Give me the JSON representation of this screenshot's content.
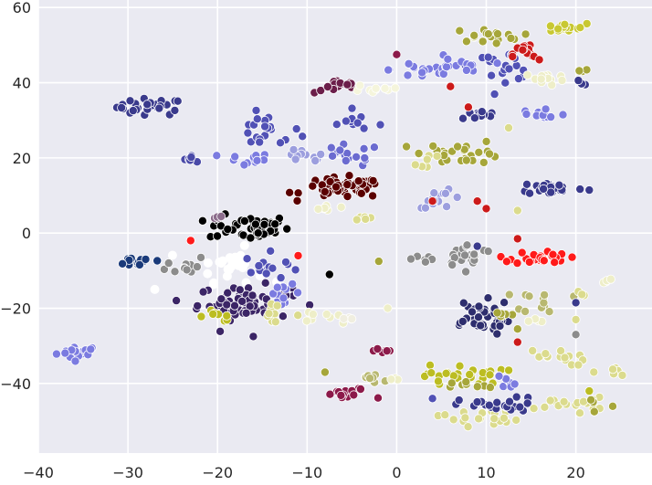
{
  "chart_data": {
    "type": "scatter",
    "title": "",
    "xlabel": "",
    "ylabel": "",
    "xlim": [
      -40,
      28.5
    ],
    "ylim": [
      -58.5,
      62
    ],
    "grid": true,
    "legend": "none",
    "background": "#eaeaf2",
    "x_ticks": [
      -40,
      -30,
      -20,
      -10,
      0,
      10,
      20
    ],
    "y_ticks": [
      -40,
      -20,
      0,
      20,
      40,
      60
    ],
    "x_tick_labels": [
      "−40",
      "−30",
      "−20",
      "−10",
      "0",
      "10",
      "20"
    ],
    "y_tick_labels": [
      "−40",
      "−20",
      "0",
      "20",
      "40",
      "60"
    ],
    "clusters": [
      {
        "color": "#7b7be0",
        "center": [
          -35.5,
          -31.7
        ],
        "spread": [
          1.6,
          1.2
        ],
        "count": 20
      },
      {
        "color": "#3a3a8c",
        "center": [
          -27.5,
          33.5
        ],
        "spread": [
          2.5,
          1.5
        ],
        "count": 26
      },
      {
        "color": "#4a4aa8",
        "center": [
          -22.7,
          20.0
        ],
        "spread": [
          0.8,
          0.7
        ],
        "count": 6
      },
      {
        "color": "#7b7be0",
        "center": [
          -17.0,
          19.5
        ],
        "spread": [
          2.0,
          1.2
        ],
        "count": 12
      },
      {
        "color": "#5151b5",
        "center": [
          -14.5,
          27.0
        ],
        "spread": [
          2.5,
          3.0
        ],
        "count": 20
      },
      {
        "color": "#9c9ede",
        "center": [
          -10.5,
          20.0
        ],
        "spread": [
          1.8,
          1.5
        ],
        "count": 12
      },
      {
        "color": "#000000",
        "center": [
          -16.5,
          1.5
        ],
        "spread": [
          3.0,
          2.2
        ],
        "count": 45
      },
      {
        "color": "#8c6d8c",
        "center": [
          -20.0,
          4.3
        ],
        "spread": [
          0.5,
          0.4
        ],
        "count": 4
      },
      {
        "color": "#1a3a7a",
        "center": [
          -28.5,
          -7.5
        ],
        "spread": [
          2.0,
          1.0
        ],
        "count": 14
      },
      {
        "color": "#8c8c8c",
        "center": [
          -23.5,
          -8.5
        ],
        "spread": [
          1.5,
          1.8
        ],
        "count": 12
      },
      {
        "color": "#ffffff",
        "center": [
          -18.5,
          -8.5
        ],
        "spread": [
          2.5,
          3.0
        ],
        "count": 28
      },
      {
        "color": "#5151b5",
        "center": [
          -14.0,
          -9.0
        ],
        "spread": [
          2.0,
          2.5
        ],
        "count": 14
      },
      {
        "color": "#3b2566",
        "center": [
          -17.0,
          -18.5
        ],
        "spread": [
          3.5,
          3.0
        ],
        "count": 70
      },
      {
        "color": "#7b7be0",
        "center": [
          -12.5,
          -16.0
        ],
        "spread": [
          1.2,
          1.5
        ],
        "count": 12
      },
      {
        "color": "#bcbd22",
        "center": [
          -20.0,
          -22.0
        ],
        "spread": [
          1.5,
          1.0
        ],
        "count": 8
      },
      {
        "color": "#dbdb8d",
        "center": [
          -14.5,
          -21.5
        ],
        "spread": [
          2.5,
          1.5
        ],
        "count": 10
      },
      {
        "color": "#eeeec8",
        "center": [
          -8.5,
          -22.0
        ],
        "spread": [
          1.5,
          1.0
        ],
        "count": 8
      },
      {
        "color": "#f0eee0",
        "center": [
          -5.5,
          -23.0
        ],
        "spread": [
          1.0,
          0.3
        ],
        "count": 4
      },
      {
        "color": "#6b1e4a",
        "center": [
          -6.5,
          39.0
        ],
        "spread": [
          1.8,
          1.2
        ],
        "count": 14
      },
      {
        "color": "#f5f5dc",
        "center": [
          -2.0,
          38.5
        ],
        "spread": [
          2.0,
          1.2
        ],
        "count": 12
      },
      {
        "color": "#7b7be0",
        "center": [
          3.0,
          43.5
        ],
        "spread": [
          2.5,
          2.0
        ],
        "count": 16
      },
      {
        "color": "#5151b5",
        "center": [
          -4.0,
          29.5
        ],
        "spread": [
          3.0,
          1.5
        ],
        "count": 10
      },
      {
        "color": "#6b6bd0",
        "center": [
          -5.5,
          20.5
        ],
        "spread": [
          2.5,
          2.0
        ],
        "count": 15
      },
      {
        "color": "#5a0000",
        "center": [
          -6.0,
          12.0
        ],
        "spread": [
          3.0,
          1.8
        ],
        "count": 55
      },
      {
        "color": "#eeeec8",
        "center": [
          -8.0,
          6.5
        ],
        "spread": [
          1.0,
          0.8
        ],
        "count": 6
      },
      {
        "color": "#dbdb8d",
        "center": [
          -3.5,
          4.0
        ],
        "spread": [
          0.8,
          0.6
        ],
        "count": 5
      },
      {
        "color": "#a6a63a",
        "center": [
          7.5,
          21.5
        ],
        "spread": [
          3.0,
          2.0
        ],
        "count": 26
      },
      {
        "color": "#dbdb8d",
        "center": [
          3.5,
          19.0
        ],
        "spread": [
          1.0,
          1.5
        ],
        "count": 6
      },
      {
        "color": "#9c9ede",
        "center": [
          5.0,
          9.0
        ],
        "spread": [
          1.8,
          1.5
        ],
        "count": 14
      },
      {
        "color": "#3a3a8c",
        "center": [
          9.0,
          31.5
        ],
        "spread": [
          1.5,
          1.0
        ],
        "count": 12
      },
      {
        "color": "#5151b5",
        "center": [
          12.0,
          44.5
        ],
        "spread": [
          2.5,
          2.5
        ],
        "count": 20
      },
      {
        "color": "#7b7be0",
        "center": [
          6.5,
          44.0
        ],
        "spread": [
          2.0,
          2.0
        ],
        "count": 14
      },
      {
        "color": "#a6a63a",
        "center": [
          10.0,
          52.5
        ],
        "spread": [
          2.5,
          1.2
        ],
        "count": 18
      },
      {
        "color": "#c8c832",
        "center": [
          18.5,
          54.5
        ],
        "spread": [
          1.8,
          0.8
        ],
        "count": 18
      },
      {
        "color": "#cc1a1a",
        "center": [
          14.5,
          47.5
        ],
        "spread": [
          1.0,
          2.0
        ],
        "count": 14
      },
      {
        "color": "#eeeec8",
        "center": [
          16.5,
          41.0
        ],
        "spread": [
          1.5,
          1.2
        ],
        "count": 16
      },
      {
        "color": "#7b7be0",
        "center": [
          16.0,
          31.5
        ],
        "spread": [
          2.0,
          1.5
        ],
        "count": 12
      },
      {
        "color": "#3a3a8c",
        "center": [
          17.5,
          12.0
        ],
        "spread": [
          2.5,
          1.2
        ],
        "count": 24
      },
      {
        "color": "#8c8c8c",
        "center": [
          8.0,
          -6.0
        ],
        "spread": [
          2.0,
          2.0
        ],
        "count": 24
      },
      {
        "color": "#8c8c8c",
        "center": [
          3.0,
          -7.0
        ],
        "spread": [
          1.0,
          1.5
        ],
        "count": 6
      },
      {
        "color": "#ff1a1a",
        "center": [
          16.0,
          -6.5
        ],
        "spread": [
          2.0,
          1.2
        ],
        "count": 28
      },
      {
        "color": "#b8b870",
        "center": [
          16.5,
          -18.0
        ],
        "spread": [
          2.0,
          2.0
        ],
        "count": 12
      },
      {
        "color": "#eeeec8",
        "center": [
          15.5,
          -23.0
        ],
        "spread": [
          1.0,
          0.5
        ],
        "count": 4
      },
      {
        "color": "#2e2e6e",
        "center": [
          9.0,
          -22.5
        ],
        "spread": [
          2.5,
          3.0
        ],
        "count": 40
      },
      {
        "color": "#a6a63a",
        "center": [
          11.5,
          -22.0
        ],
        "spread": [
          0.8,
          1.0
        ],
        "count": 6
      },
      {
        "color": "#dbdb8d",
        "center": [
          17.5,
          -33.0
        ],
        "spread": [
          2.5,
          1.5
        ],
        "count": 14
      },
      {
        "color": "#bcbd22",
        "center": [
          7.5,
          -38.0
        ],
        "spread": [
          3.0,
          2.0
        ],
        "count": 30
      },
      {
        "color": "#dbdb8d",
        "center": [
          9.0,
          -49.0
        ],
        "spread": [
          3.0,
          1.5
        ],
        "count": 20
      },
      {
        "color": "#3a3a8c",
        "center": [
          11.5,
          -46.0
        ],
        "spread": [
          3.0,
          1.5
        ],
        "count": 24
      },
      {
        "color": "#7b7be0",
        "center": [
          12.5,
          -39.5
        ],
        "spread": [
          1.5,
          1.2
        ],
        "count": 8
      },
      {
        "color": "#a6a63a",
        "center": [
          8.5,
          -41.0
        ],
        "spread": [
          1.5,
          1.0
        ],
        "count": 8
      },
      {
        "color": "#8c1a4a",
        "center": [
          -5.5,
          -43.0
        ],
        "spread": [
          2.0,
          1.2
        ],
        "count": 14
      },
      {
        "color": "#8c1a4a",
        "center": [
          -1.5,
          -31.5
        ],
        "spread": [
          1.0,
          0.6
        ],
        "count": 6
      },
      {
        "color": "#b8b870",
        "center": [
          -2.5,
          -38.5
        ],
        "spread": [
          1.5,
          1.0
        ],
        "count": 10
      },
      {
        "color": "#eeeec8",
        "center": [
          0.0,
          -38.5
        ],
        "spread": [
          0.8,
          0.6
        ],
        "count": 4
      },
      {
        "color": "#dbdb8d",
        "center": [
          19.5,
          -45.5
        ],
        "spread": [
          2.5,
          1.2
        ],
        "count": 18
      },
      {
        "color": "#a6a63a",
        "center": [
          22.5,
          -45.0
        ],
        "spread": [
          1.0,
          1.5
        ],
        "count": 4
      },
      {
        "color": "#dbdb8d",
        "center": [
          24.0,
          -37.0
        ],
        "spread": [
          1.5,
          1.0
        ],
        "count": 6
      },
      {
        "color": "#eeeec8",
        "center": [
          23.5,
          -13.0
        ],
        "spread": [
          0.5,
          1.0
        ],
        "count": 4
      },
      {
        "color": "#dbdb8d",
        "center": [
          21.0,
          -16.0
        ],
        "spread": [
          0.5,
          0.5
        ],
        "count": 3
      },
      {
        "color": "#3a3a8c",
        "center": [
          20.5,
          40.0
        ],
        "spread": [
          0.5,
          1.0
        ],
        "count": 3
      },
      {
        "color": "#a6a63a",
        "center": [
          21.0,
          43.5
        ],
        "spread": [
          0.6,
          0.3
        ],
        "count": 3
      }
    ],
    "singles": [
      {
        "x": -7.5,
        "y": -11,
        "color": "#000000"
      },
      {
        "x": -11,
        "y": -6,
        "color": "#ff1a1a"
      },
      {
        "x": -23,
        "y": -2,
        "color": "#ff1a1a"
      },
      {
        "x": -27,
        "y": -15,
        "color": "#ffffff"
      },
      {
        "x": -16,
        "y": -27.5,
        "color": "#3b2566"
      },
      {
        "x": -2,
        "y": -7.5,
        "color": "#a6a63a"
      },
      {
        "x": 0,
        "y": 47.5,
        "color": "#8c1a4a"
      },
      {
        "x": 6,
        "y": 39,
        "color": "#cc1a1a"
      },
      {
        "x": 8,
        "y": 33.5,
        "color": "#cc1a1a"
      },
      {
        "x": 4,
        "y": 8.5,
        "color": "#cc1a1a"
      },
      {
        "x": 9,
        "y": 8.5,
        "color": "#cc1a1a"
      },
      {
        "x": 10,
        "y": 6.5,
        "color": "#cc1a1a"
      },
      {
        "x": 13.5,
        "y": -1.5,
        "color": "#cc1a1a"
      },
      {
        "x": 13.5,
        "y": -29,
        "color": "#cc1a1a"
      },
      {
        "x": 12.5,
        "y": 28,
        "color": "#dbdb8d"
      },
      {
        "x": 13.5,
        "y": 6,
        "color": "#dbdb8d"
      },
      {
        "x": 20,
        "y": -23,
        "color": "#dbdb8d"
      },
      {
        "x": 20,
        "y": -27,
        "color": "#8c8c8c"
      },
      {
        "x": 20,
        "y": -18.5,
        "color": "#3a3a8c"
      },
      {
        "x": 9,
        "y": -3.5,
        "color": "#3a3a8c"
      },
      {
        "x": 21.5,
        "y": -42,
        "color": "#bcbd22"
      },
      {
        "x": 4,
        "y": -44,
        "color": "#5151b5"
      },
      {
        "x": -8,
        "y": -37,
        "color": "#a6a63a"
      },
      {
        "x": -1,
        "y": -20,
        "color": "#eeeec8"
      },
      {
        "x": 13.5,
        "y": -25.5,
        "color": "#a6a63a"
      }
    ]
  }
}
